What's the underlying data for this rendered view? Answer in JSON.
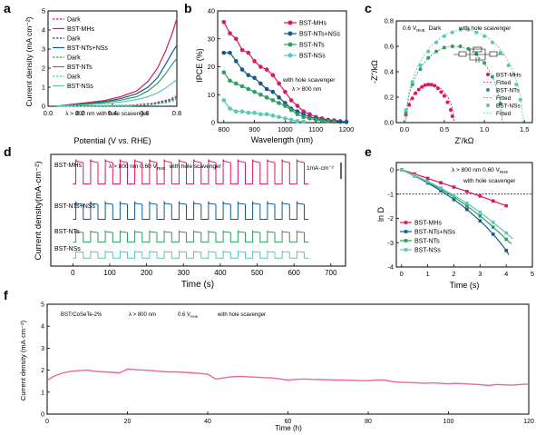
{
  "colors": {
    "mhs": "#d81b5a",
    "ntsnss": "#155a8a",
    "nts": "#2e9e5e",
    "nss": "#5cc7b3",
    "f_line": "#e46aa3",
    "axis": "#000000"
  },
  "chart_data": [
    {
      "id": "a",
      "panel_label": "a",
      "type": "line",
      "xlabel": "Potential (V vs. RHE)",
      "ylabel": "Current density (mA cm⁻²)",
      "xlim": [
        0.0,
        0.8
      ],
      "ylim": [
        0,
        5
      ],
      "xticks": [
        "0.0",
        "0.2",
        "0.4",
        "0.6",
        "0.8"
      ],
      "yticks": [
        "0",
        "1",
        "2",
        "3",
        "4",
        "5"
      ],
      "annotation": "λ > 800 nm    with hole scavenger",
      "legend": [
        "Dark",
        "BST-MHs",
        "Dark",
        "BST-NTs+NSs",
        "Dark",
        "BST-NTs",
        "Dark",
        "BST-NSs"
      ],
      "series": [
        {
          "name": "BST-MHs",
          "color": "mhs",
          "dash": false,
          "x": [
            0.05,
            0.15,
            0.25,
            0.35,
            0.45,
            0.55,
            0.62,
            0.68,
            0.73,
            0.77,
            0.8
          ],
          "y": [
            0.0,
            0.1,
            0.2,
            0.3,
            0.5,
            0.8,
            1.3,
            2.0,
            2.9,
            3.8,
            4.6
          ]
        },
        {
          "name": "Dark",
          "color": "mhs",
          "dash": true,
          "x": [
            0.05,
            0.3,
            0.5,
            0.65,
            0.75,
            0.8
          ],
          "y": [
            0.0,
            0.02,
            0.05,
            0.15,
            0.35,
            0.55
          ]
        },
        {
          "name": "BST-NTs+NSs",
          "color": "ntsnss",
          "dash": false,
          "x": [
            0.05,
            0.15,
            0.25,
            0.35,
            0.45,
            0.55,
            0.62,
            0.68,
            0.73,
            0.77,
            0.8
          ],
          "y": [
            0.0,
            0.08,
            0.15,
            0.25,
            0.4,
            0.65,
            1.0,
            1.5,
            2.2,
            2.8,
            3.2
          ]
        },
        {
          "name": "Dark",
          "color": "ntsnss",
          "dash": true,
          "x": [
            0.05,
            0.3,
            0.5,
            0.65,
            0.75,
            0.8
          ],
          "y": [
            0.0,
            0.02,
            0.04,
            0.12,
            0.3,
            0.45
          ]
        },
        {
          "name": "BST-NTs",
          "color": "nts",
          "dash": false,
          "x": [
            0.05,
            0.15,
            0.25,
            0.35,
            0.45,
            0.55,
            0.62,
            0.68,
            0.73,
            0.77,
            0.8
          ],
          "y": [
            0.0,
            0.06,
            0.12,
            0.2,
            0.32,
            0.5,
            0.8,
            1.2,
            1.7,
            2.2,
            2.5
          ]
        },
        {
          "name": "Dark",
          "color": "nts",
          "dash": true,
          "x": [
            0.05,
            0.3,
            0.5,
            0.65,
            0.75,
            0.8
          ],
          "y": [
            0.0,
            0.02,
            0.03,
            0.1,
            0.25,
            0.4
          ]
        },
        {
          "name": "BST-NSs",
          "color": "nss",
          "dash": false,
          "x": [
            0.05,
            0.15,
            0.25,
            0.35,
            0.45,
            0.55,
            0.62,
            0.68,
            0.73,
            0.77,
            0.8
          ],
          "y": [
            0.0,
            0.04,
            0.08,
            0.14,
            0.22,
            0.35,
            0.5,
            0.7,
            0.95,
            1.2,
            1.4
          ]
        },
        {
          "name": "Dark",
          "color": "nss",
          "dash": true,
          "x": [
            0.05,
            0.3,
            0.5,
            0.65,
            0.75,
            0.8
          ],
          "y": [
            0.0,
            0.01,
            0.02,
            0.08,
            0.2,
            0.35
          ]
        }
      ]
    },
    {
      "id": "b",
      "panel_label": "b",
      "type": "line",
      "xlabel": "Wavelength (nm)",
      "ylabel": "IPCE (%)",
      "xlim": [
        780,
        1200
      ],
      "ylim": [
        0,
        40
      ],
      "xticks": [
        "800",
        "900",
        "1000",
        "1100",
        "1200"
      ],
      "yticks": [
        "0",
        "10",
        "20",
        "30",
        "40"
      ],
      "annotation_line1": "with hole scavenger",
      "annotation_line2": "λ > 800 nm",
      "legend": [
        "BST-MHs",
        "BST-NTs+NSs",
        "BST-NTs",
        "BST-NSs"
      ],
      "series": [
        {
          "name": "BST-MHs",
          "color": "mhs",
          "x": [
            800,
            820,
            840,
            860,
            880,
            900,
            920,
            940,
            960,
            980,
            1000,
            1020,
            1040,
            1060,
            1080,
            1100,
            1120,
            1140,
            1160,
            1180,
            1200
          ],
          "y": [
            36,
            32,
            30,
            26,
            25,
            22,
            20,
            19,
            17,
            14,
            11,
            8,
            6,
            4,
            3,
            2,
            1.5,
            1.0,
            0.8,
            0.5,
            0.3
          ]
        },
        {
          "name": "BST-NTs+NSs",
          "color": "ntsnss",
          "x": [
            800,
            820,
            840,
            860,
            880,
            900,
            920,
            940,
            960,
            980,
            1000,
            1020,
            1040,
            1060,
            1080,
            1100,
            1120,
            1140,
            1160,
            1180,
            1200
          ],
          "y": [
            25,
            25,
            22,
            19,
            17,
            16,
            14,
            12,
            11,
            9,
            7,
            5,
            4,
            3,
            2,
            1.5,
            1.0,
            0.8,
            0.5,
            0.3,
            0.2
          ]
        },
        {
          "name": "BST-NTs",
          "color": "nts",
          "x": [
            800,
            820,
            840,
            860,
            880,
            900,
            920,
            940,
            960,
            980,
            1000,
            1020,
            1040,
            1060,
            1080,
            1100,
            1120,
            1140,
            1160
          ],
          "y": [
            18,
            15,
            14,
            13,
            12,
            11,
            10,
            9,
            8,
            7,
            6,
            4.5,
            3,
            2,
            1.5,
            1.0,
            0.7,
            0.5,
            0.3
          ]
        },
        {
          "name": "BST-NSs",
          "color": "nss",
          "x": [
            800,
            820,
            840,
            860,
            880,
            900,
            920,
            940,
            960,
            980,
            1000,
            1020,
            1040,
            1060
          ],
          "y": [
            8,
            5,
            4,
            4,
            3.5,
            3.5,
            3,
            3,
            2.5,
            2,
            1.5,
            1.0,
            0.5,
            0.3
          ]
        }
      ]
    },
    {
      "id": "c",
      "panel_label": "c",
      "type": "scatter",
      "xlabel": "Z'/kΩ",
      "ylabel": "-Z''/kΩ",
      "xlim": [
        -0.1,
        1.6
      ],
      "ylim": [
        0,
        0.8
      ],
      "xticks": [
        "0.0",
        "0.5",
        "1.0",
        "1.5"
      ],
      "yticks": [
        "0.0",
        "0.2",
        "0.4",
        "0.6",
        "0.8"
      ],
      "annotation_v": "0.6 V",
      "annotation_sub": "RHE",
      "annotation_dark": "Dark",
      "annotation_hs": "with hole scavenger",
      "legend": [
        "BST-MHs",
        "Fitted",
        "BST-NTs",
        "Fitted",
        "BST-NSs",
        "Fitted"
      ],
      "series": [
        {
          "name": "BST-MHs",
          "color": "mhs",
          "center": 0.32,
          "radius": 0.3,
          "x": [
            0.02,
            0.06,
            0.1,
            0.14,
            0.18,
            0.22,
            0.26,
            0.3,
            0.34,
            0.38,
            0.42,
            0.46,
            0.5,
            0.54,
            0.58,
            0.6
          ],
          "y": [
            0.06,
            0.14,
            0.19,
            0.23,
            0.26,
            0.28,
            0.295,
            0.3,
            0.298,
            0.29,
            0.27,
            0.24,
            0.21,
            0.16,
            0.1,
            0.05
          ]
        },
        {
          "name": "BST-NTs",
          "color": "nts",
          "center": 0.62,
          "radius": 0.6,
          "x": [
            0.02,
            0.1,
            0.2,
            0.3,
            0.4,
            0.5,
            0.6,
            0.7,
            0.8,
            0.9,
            1.0,
            1.1,
            1.2
          ],
          "y": [
            0.08,
            0.3,
            0.42,
            0.51,
            0.56,
            0.59,
            0.6,
            0.6,
            0.58,
            0.54,
            0.47,
            0.36,
            0.15
          ]
        },
        {
          "name": "BST-NSs",
          "color": "nss",
          "center": 0.75,
          "radius": 0.73,
          "x": [
            0.02,
            0.1,
            0.2,
            0.3,
            0.4,
            0.5,
            0.6,
            0.7,
            0.8,
            0.9,
            1.0,
            1.1,
            1.2,
            1.3,
            1.4,
            1.45
          ],
          "y": [
            0.1,
            0.32,
            0.45,
            0.56,
            0.63,
            0.68,
            0.71,
            0.73,
            0.73,
            0.71,
            0.68,
            0.63,
            0.55,
            0.45,
            0.3,
            0.18
          ]
        }
      ]
    },
    {
      "id": "d",
      "panel_label": "d",
      "type": "line",
      "xlabel": "Time (s)",
      "ylabel": "Current density(mA·cm⁻²)",
      "xlim": [
        -60,
        740
      ],
      "xticks": [
        "0",
        "100",
        "200",
        "300",
        "400",
        "500",
        "600",
        "700"
      ],
      "annotation": "λ > 800 nm    0.60 V",
      "annotation_sub": "RHE",
      "annotation_hs": "with hole scavenger",
      "scale_label": "1mA·cm⁻²",
      "labels": [
        "BST-MHs",
        "BST-NTs+NSs",
        "BST-NTs",
        "BST-NSs"
      ],
      "series": [
        {
          "name": "BST-MHs",
          "color": "mhs",
          "baseline": 0.0,
          "amplitude": 1.0
        },
        {
          "name": "BST-NTs+NSs",
          "color": "ntsnss",
          "baseline": -1.55,
          "amplitude": 0.7
        },
        {
          "name": "BST-NTs",
          "color": "nts",
          "baseline": -2.55,
          "amplitude": 0.45
        },
        {
          "name": "BST-NSs",
          "color": "nss",
          "baseline": -3.25,
          "amplitude": 0.28
        }
      ],
      "period_s": 40,
      "on_duration_s": 20,
      "start_s": 0,
      "end_s": 640
    },
    {
      "id": "e",
      "panel_label": "e",
      "type": "line",
      "xlabel": "Time (s)",
      "ylabel": "ln D",
      "xlim": [
        -0.2,
        5
      ],
      "ylim": [
        -4,
        0.3
      ],
      "xticks": [
        "0",
        "1",
        "2",
        "3",
        "4",
        "5"
      ],
      "yticks": [
        "0",
        "-1",
        "-2",
        "-3",
        "-4"
      ],
      "annotation": "λ > 800 nm    0.60 V",
      "annotation_sub": "RHE",
      "annotation_hs": "with hole scavenger",
      "hline": -1,
      "legend": [
        "BST-MHs",
        "BST-NTs+NSs",
        "BST-NTs",
        "BST-NSs"
      ],
      "series": [
        {
          "name": "BST-MHs",
          "color": "mhs",
          "x": [
            0,
            0.25,
            0.5,
            0.75,
            1.0,
            1.25,
            1.5,
            1.75,
            2.0,
            2.25,
            2.5,
            2.75,
            3.0,
            3.25,
            3.5,
            3.75,
            4.0
          ],
          "y": [
            0,
            -0.08,
            -0.17,
            -0.26,
            -0.35,
            -0.44,
            -0.53,
            -0.62,
            -0.71,
            -0.8,
            -0.89,
            -0.99,
            -1.08,
            -1.18,
            -1.28,
            -1.38,
            -1.48
          ]
        },
        {
          "name": "BST-NTs+NSs",
          "color": "ntsnss",
          "x": [
            0,
            0.25,
            0.5,
            0.75,
            1.0,
            1.25,
            1.5,
            1.75,
            2.0,
            2.25,
            2.5,
            2.75,
            3.0,
            3.25,
            3.5,
            3.75,
            4.0,
            4.1
          ],
          "y": [
            0,
            -0.12,
            -0.25,
            -0.39,
            -0.54,
            -0.7,
            -0.86,
            -1.04,
            -1.22,
            -1.42,
            -1.63,
            -1.86,
            -2.1,
            -2.36,
            -2.65,
            -2.96,
            -3.32,
            -3.5
          ]
        },
        {
          "name": "BST-NTs",
          "color": "nts",
          "x": [
            0,
            0.25,
            0.5,
            0.75,
            1.0,
            1.25,
            1.5,
            1.75,
            2.0,
            2.25,
            2.5,
            2.75,
            3.0,
            3.25,
            3.5,
            3.75,
            4.0,
            4.2
          ],
          "y": [
            0,
            -0.12,
            -0.24,
            -0.37,
            -0.5,
            -0.64,
            -0.79,
            -0.95,
            -1.12,
            -1.3,
            -1.49,
            -1.69,
            -1.9,
            -2.12,
            -2.36,
            -2.6,
            -2.86,
            -3.05
          ]
        },
        {
          "name": "BST-NSs",
          "color": "nss",
          "x": [
            0,
            0.25,
            0.5,
            0.75,
            1.0,
            1.25,
            1.5,
            1.75,
            2.0,
            2.25,
            2.5,
            2.75,
            3.0,
            3.25,
            3.5,
            3.75,
            4.0,
            4.25
          ],
          "y": [
            0,
            -0.11,
            -0.23,
            -0.35,
            -0.48,
            -0.61,
            -0.75,
            -0.9,
            -1.05,
            -1.21,
            -1.38,
            -1.56,
            -1.75,
            -1.95,
            -2.16,
            -2.38,
            -2.6,
            -2.85
          ]
        }
      ]
    },
    {
      "id": "f",
      "panel_label": "f",
      "type": "line",
      "xlabel": "Time (h)",
      "ylabel": "Current density (mA·cm⁻²)",
      "xlim": [
        0,
        120
      ],
      "ylim": [
        0,
        5
      ],
      "xticks": [
        "0",
        "20",
        "40",
        "60",
        "80",
        "100",
        "120"
      ],
      "yticks": [
        "0",
        "1",
        "2",
        "3",
        "4",
        "5"
      ],
      "annotation_sample": "BST/CoSeTe-2%",
      "annotation_lambda": "λ > 800 nm",
      "annotation_v": "0.6 V",
      "annotation_sub": "RHE",
      "annotation_hs": "with hole scavenger",
      "series": [
        {
          "name": "BST/CoSeTe-2%",
          "color": "f_line",
          "x": [
            0,
            2,
            4,
            6,
            8,
            10,
            12,
            14,
            16,
            18,
            19,
            20,
            22,
            24,
            26,
            28,
            30,
            32,
            34,
            36,
            38,
            40,
            42,
            44,
            46,
            48,
            50,
            52,
            54,
            56,
            58,
            60,
            62,
            64,
            66,
            68,
            70,
            72,
            74,
            76,
            78,
            80,
            82,
            84,
            86,
            88,
            90,
            92,
            94,
            96,
            98,
            100,
            102,
            104,
            106,
            108,
            110,
            112,
            114,
            116,
            118,
            120
          ],
          "y": [
            1.55,
            1.75,
            1.88,
            1.95,
            1.98,
            2.0,
            1.95,
            1.92,
            1.9,
            1.88,
            1.95,
            2.05,
            2.02,
            2.0,
            1.98,
            1.95,
            1.92,
            1.92,
            1.9,
            1.88,
            1.85,
            1.82,
            1.6,
            1.65,
            1.7,
            1.72,
            1.7,
            1.68,
            1.66,
            1.65,
            1.6,
            1.55,
            1.58,
            1.6,
            1.58,
            1.57,
            1.56,
            1.55,
            1.55,
            1.54,
            1.52,
            1.52,
            1.55,
            1.55,
            1.48,
            1.45,
            1.44,
            1.42,
            1.4,
            1.42,
            1.4,
            1.38,
            1.4,
            1.38,
            1.36,
            1.34,
            1.3,
            1.35,
            1.33,
            1.32,
            1.35,
            1.37
          ]
        }
      ]
    }
  ]
}
